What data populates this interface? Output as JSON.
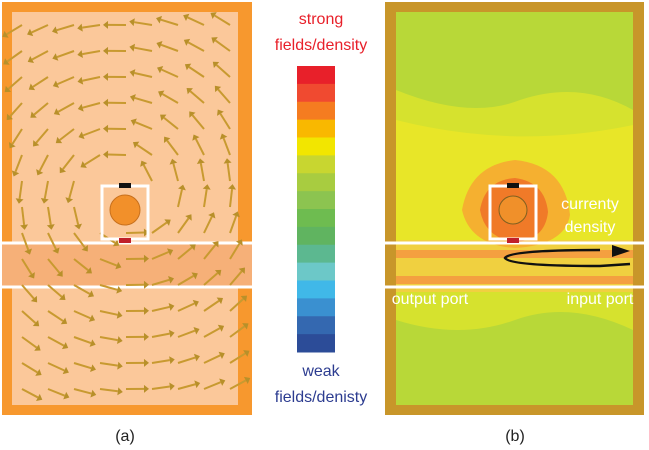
{
  "panel_a": {
    "caption": "(a)"
  },
  "color_scale": {
    "top_label": [
      "strong",
      "fields/density"
    ],
    "bottom_label": [
      "weak",
      "fields/denisty"
    ]
  },
  "panel_b": {
    "caption": "(b)",
    "annotation": [
      "currenty",
      "density"
    ],
    "output_port": "output port",
    "input_port": "input port"
  }
}
